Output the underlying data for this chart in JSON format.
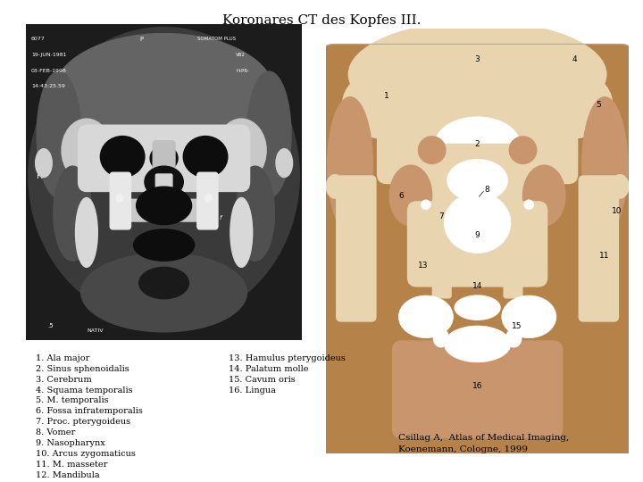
{
  "title": "Koronares CT des Kopfes III.",
  "title_fontsize": 11,
  "background_color": "#ffffff",
  "labels_col1": [
    "1. Ala major",
    "2. Sinus sphenoidalis",
    "3. Cerebrum",
    "4. Squama temporalis",
    "5. M. temporalis",
    "6. Fossa infratemporalis",
    "7. Proc. pterygoideus",
    "8. Vomer",
    "9. Nasopharynx",
    "10. Arcus zygomaticus",
    "11. M. masseter",
    "12. Mandibula"
  ],
  "labels_col2": [
    "13. Hamulus pterygoideus",
    "14. Palatum molle",
    "15. Cavum oris",
    "16. Lingua"
  ],
  "citation_line1": "Csillag A,  Atlas of Medical Imaging,",
  "citation_line2": "Koenemann, Cologne, 1999",
  "label_fontsize": 7,
  "citation_fontsize": 7.5,
  "skin_dark": "#B5834A",
  "skin_light": "#E8D5B0",
  "skin_mid": "#C8956C",
  "cavity_color": "#FFFFFF",
  "outline_color": "#888888"
}
